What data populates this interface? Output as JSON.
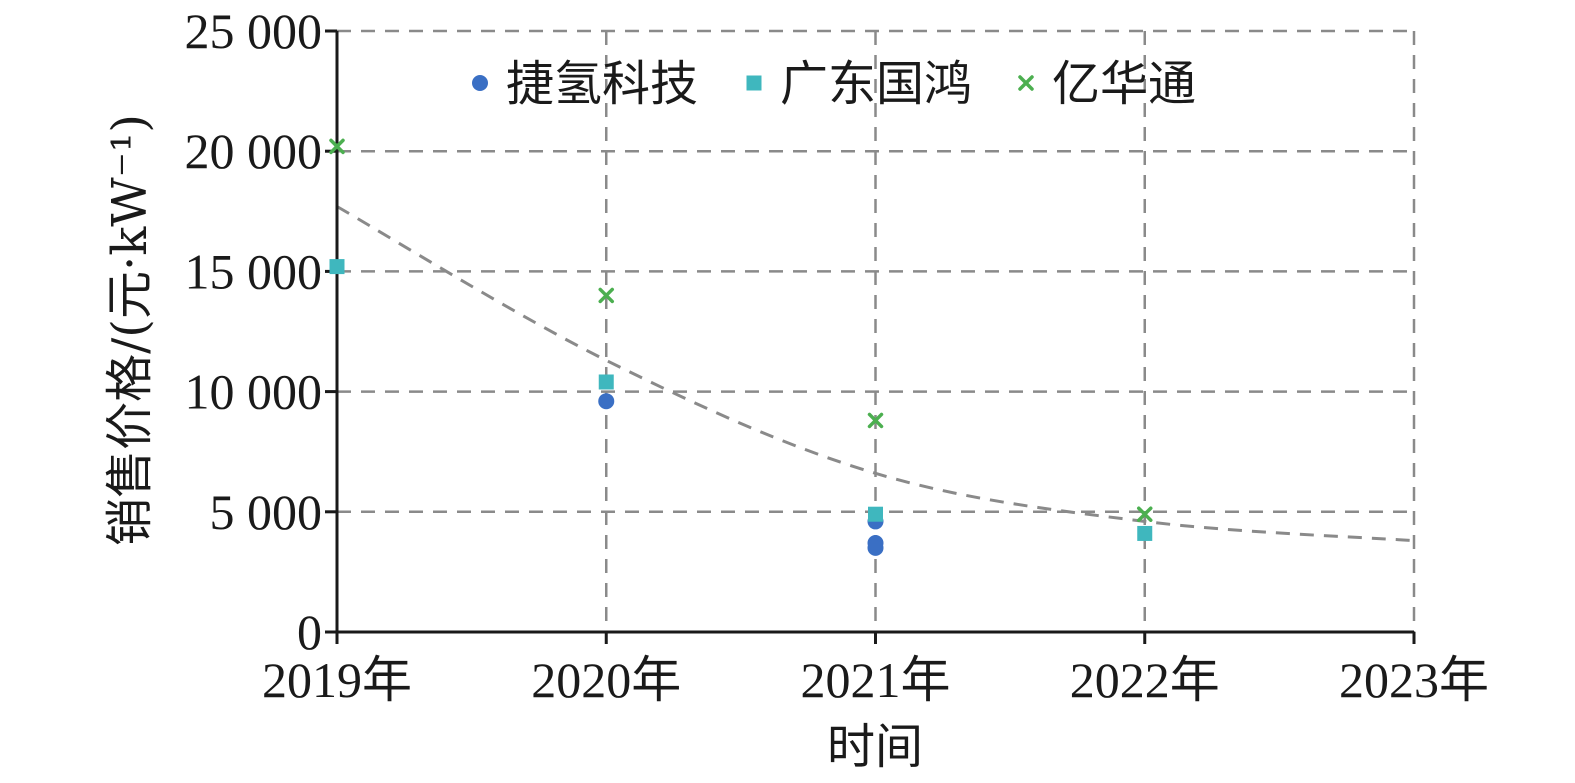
{
  "chart_data": {
    "type": "scatter",
    "xlabel": "时间",
    "ylabel": "销售价格/(元·kW⁻¹)",
    "x_categories": [
      "2019年",
      "2020年",
      "2021年",
      "2022年",
      "2023年"
    ],
    "y_ticks": [
      "0",
      "5 000",
      "10 000",
      "15 000",
      "20 000",
      "25 000"
    ],
    "ylim": [
      0,
      25000
    ],
    "grid": true,
    "legend_position": "top",
    "series": [
      {
        "name": "捷氢科技",
        "marker": "circle",
        "color": "#3a6fc4",
        "points": [
          {
            "x": "2020年",
            "y": 9600
          },
          {
            "x": "2021年",
            "y": 4600
          },
          {
            "x": "2021年",
            "y": 3700
          },
          {
            "x": "2021年",
            "y": 3500
          }
        ]
      },
      {
        "name": "广东国鸿",
        "marker": "square",
        "color": "#3fb7be",
        "points": [
          {
            "x": "2019年",
            "y": 15200
          },
          {
            "x": "2020年",
            "y": 10400
          },
          {
            "x": "2021年",
            "y": 4900
          },
          {
            "x": "2022年",
            "y": 4100
          }
        ]
      },
      {
        "name": "亿华通",
        "marker": "x",
        "color": "#4caf50",
        "points": [
          {
            "x": "2019年",
            "y": 20200
          },
          {
            "x": "2020年",
            "y": 14000
          },
          {
            "x": "2021年",
            "y": 8800
          },
          {
            "x": "2022年",
            "y": 4900
          }
        ]
      }
    ],
    "trendline": {
      "style": "dashed",
      "color": "#8a8a8a",
      "points": [
        {
          "x": "2019年",
          "y": 17700
        },
        {
          "x": "2020年",
          "y": 11300
        },
        {
          "x": "2021年",
          "y": 6600
        },
        {
          "x": "2022年",
          "y": 4600
        },
        {
          "x": "2023年",
          "y": 3800
        }
      ]
    }
  }
}
